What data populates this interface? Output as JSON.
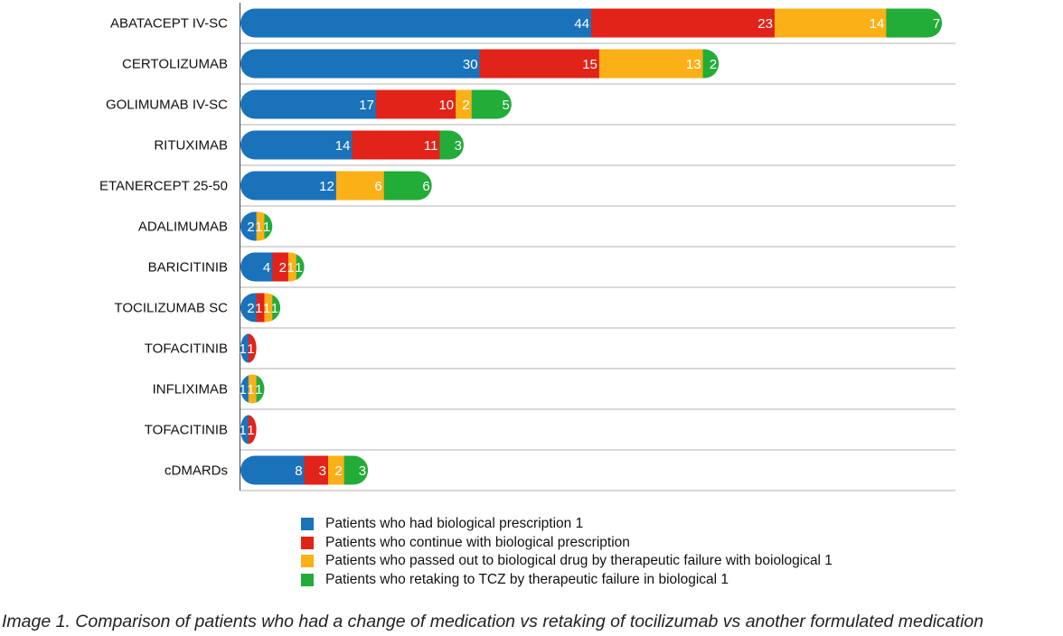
{
  "chart_data": {
    "type": "bar",
    "orientation": "horizontal",
    "stacked": true,
    "categories": [
      "ABATACEPT IV-SC",
      "CERTOLIZUMAB",
      "GOLIMUMAB IV-SC",
      "RITUXIMAB",
      "ETANERCEPT 25-50",
      "ADALIMUMAB",
      "BARICITINIB",
      "TOCILIZUMAB SC",
      "TOFACITINIB",
      "INFLIXIMAB",
      "TOFACITINIB",
      "cDMARDs"
    ],
    "series": [
      {
        "name": "Patients who had biological prescription 1",
        "color": "#1a72bb",
        "values": [
          44,
          30,
          17,
          14,
          12,
          2,
          4,
          2,
          1,
          1,
          1,
          8
        ]
      },
      {
        "name": "Patients who continue with biological prescription",
        "color": "#e2231a",
        "values": [
          23,
          15,
          10,
          11,
          0,
          0,
          2,
          1,
          1,
          0,
          1,
          3
        ]
      },
      {
        "name": "Patients who passed out to biological drug by therapeutic failure with boiological 1",
        "color": "#fbb017",
        "values": [
          14,
          13,
          2,
          0,
          6,
          1,
          1,
          1,
          0,
          1,
          0,
          2
        ]
      },
      {
        "name": "Patients who retaking to TCZ by therapeutic failure  in biological 1",
        "color": "#22ac38",
        "values": [
          7,
          2,
          5,
          3,
          6,
          1,
          1,
          1,
          0,
          1,
          0,
          3
        ]
      }
    ],
    "grid": true,
    "legend_position": "bottom"
  },
  "caption": "Image 1. Comparison of patients who had a change of medication vs retaking of tocilizumab vs another formulated medication"
}
